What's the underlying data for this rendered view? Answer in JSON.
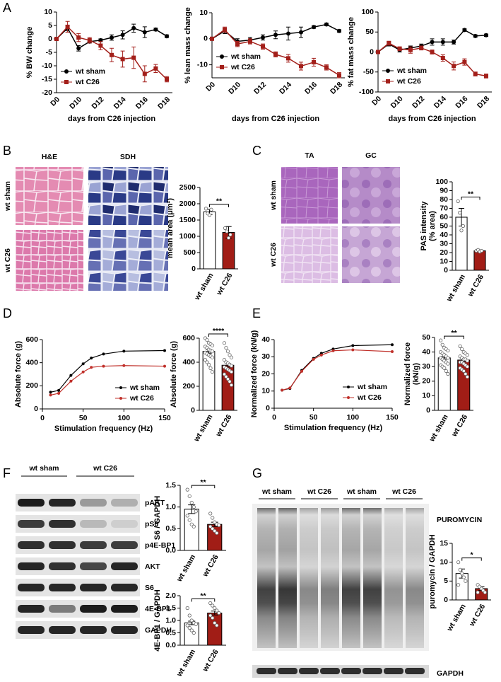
{
  "figure": {
    "panel_labels": [
      "A",
      "B",
      "C",
      "D",
      "E",
      "F",
      "G"
    ],
    "B_images": {
      "columns": [
        "H&E",
        "SDH"
      ],
      "rows": [
        "wt sham",
        "wt C26"
      ]
    },
    "C_images": {
      "columns": [
        "TA",
        "GC"
      ],
      "rows": [
        "wt sham",
        "wt C26"
      ]
    },
    "F_blot": {
      "groups": [
        "wt sham",
        "wt C26"
      ],
      "rows": [
        "pAKT",
        "pS6",
        "p4E-BP1",
        "AKT",
        "S6",
        "4E-BP1",
        "GAPDH"
      ]
    },
    "G_blot": {
      "groups": [
        "wt sham",
        "wt C26",
        "wt sham",
        "wt C26"
      ],
      "rows": [
        "PUROMYCIN",
        "GAPDH"
      ]
    }
  },
  "chart_data": [
    {
      "type": "line",
      "ylabel": "% BW change",
      "xlabel": "days from C26 injection",
      "categories": [
        "D0",
        null,
        "D10",
        null,
        "D12",
        null,
        "D14",
        null,
        "D16",
        null,
        "D18"
      ],
      "ylim": [
        -20,
        10
      ],
      "yticks": [
        -20,
        -15,
        -10,
        -5,
        0,
        5,
        10
      ],
      "legend": "lower left",
      "series": [
        {
          "name": "wt sham",
          "color": "#000000",
          "marker": "circle",
          "values": [
            0,
            4,
            -3.5,
            -1,
            -0.5,
            0.5,
            1.5,
            4,
            2.5,
            3.5,
            1
          ],
          "errors": [
            0,
            1,
            1,
            0.5,
            0.5,
            1,
            1.5,
            1.5,
            2,
            0.5,
            0.5
          ]
        },
        {
          "name": "wt C26",
          "color": "#a31f1a",
          "marker": "square",
          "values": [
            0,
            4.5,
            0.5,
            -0.5,
            -2.5,
            -6,
            -7.5,
            -7,
            -13,
            -11,
            -15
          ],
          "errors": [
            0,
            2,
            1.5,
            1,
            1.5,
            2.5,
            3,
            4,
            3,
            1.5,
            1
          ]
        }
      ]
    },
    {
      "type": "line",
      "ylabel": "% lean mass change",
      "xlabel": "days from C26 injection",
      "categories": [
        "D0",
        null,
        "D10",
        null,
        "D12",
        null,
        "D14",
        null,
        "D16",
        null,
        "D18"
      ],
      "ylim": [
        -15,
        10
      ],
      "yticks": [
        -10,
        0,
        10
      ],
      "legend": "lower left",
      "series": [
        {
          "name": "wt sham",
          "color": "#000000",
          "marker": "circle",
          "values": [
            0,
            3,
            -1,
            -0.5,
            0.5,
            1.5,
            2,
            2.5,
            4.5,
            5.5,
            3
          ],
          "errors": [
            0,
            1,
            1,
            1,
            1,
            1.5,
            2.5,
            2,
            0.5,
            0.5,
            0.5
          ]
        },
        {
          "name": "wt C26",
          "color": "#a31f1a",
          "marker": "square",
          "values": [
            0,
            3.5,
            -2,
            -1,
            -3,
            -6,
            -7.5,
            -10.5,
            -9,
            -11,
            -14
          ],
          "errors": [
            0,
            1,
            1,
            1,
            1,
            1,
            1.5,
            1.5,
            1.5,
            1,
            1
          ]
        }
      ]
    },
    {
      "type": "line",
      "ylabel": "% fat mass change",
      "xlabel": "days from C26 injection",
      "categories": [
        "D0",
        null,
        "D10",
        null,
        "D12",
        null,
        "D14",
        null,
        "D16",
        null,
        "D18"
      ],
      "ylim": [
        -100,
        100
      ],
      "yticks": [
        -100,
        -50,
        0,
        50,
        100
      ],
      "legend": "lower left",
      "series": [
        {
          "name": "wt sham",
          "color": "#000000",
          "marker": "circle",
          "values": [
            0,
            20,
            5,
            10,
            15,
            25,
            25,
            25,
            55,
            40,
            42
          ],
          "errors": [
            0,
            5,
            5,
            5,
            5,
            8,
            8,
            5,
            3,
            3,
            3
          ]
        },
        {
          "name": "wt C26",
          "color": "#a31f1a",
          "marker": "square",
          "values": [
            0,
            22,
            8,
            5,
            10,
            0,
            -15,
            -35,
            -25,
            -55,
            -60
          ],
          "errors": [
            0,
            5,
            5,
            8,
            5,
            5,
            8,
            10,
            8,
            5,
            5
          ]
        }
      ]
    },
    {
      "type": "bar",
      "ylabel": "mean area (μm²)",
      "categories": [
        "wt sham",
        "wt C26"
      ],
      "values": [
        1750,
        1120
      ],
      "errors": [
        80,
        180
      ],
      "colors": [
        "#ffffff",
        "#a11d16"
      ],
      "points": [
        [
          1850,
          1700,
          1650,
          1820
        ],
        [
          1250,
          1150,
          950,
          1050
        ]
      ],
      "ylim": [
        0,
        2500
      ],
      "yticks": [
        0,
        500,
        1000,
        1500,
        2000,
        2500
      ],
      "annotation": "**"
    },
    {
      "type": "bar",
      "ylabel": [
        "PAS intensity",
        "(% area)"
      ],
      "categories": [
        "wt sham",
        "wt C26"
      ],
      "values": [
        60,
        22
      ],
      "errors": [
        10,
        1
      ],
      "colors": [
        "#ffffff",
        "#a11d16"
      ],
      "points": [
        [
          78,
          65,
          45,
          50
        ],
        [
          22,
          23,
          21,
          22
        ]
      ],
      "ylim": [
        0,
        100
      ],
      "yticks": [
        0,
        10,
        20,
        30,
        40,
        50,
        60,
        70,
        80,
        90,
        100
      ],
      "annotation": "**"
    },
    {
      "type": "line",
      "ylabel": "Absolute force (g)",
      "xlabel": "Stimulation frequency (Hz)",
      "x": [
        10,
        20,
        35,
        50,
        60,
        75,
        100,
        150
      ],
      "xlim": [
        0,
        150
      ],
      "xticks": [
        0,
        50,
        100,
        150
      ],
      "ylim": [
        0,
        600
      ],
      "yticks": [
        0,
        200,
        400,
        600
      ],
      "legend": "lower right",
      "series": [
        {
          "name": "wt sham",
          "color": "#000000",
          "marker": "circle",
          "values": [
            145,
            160,
            290,
            390,
            440,
            475,
            500,
            505
          ]
        },
        {
          "name": "wt C26",
          "color": "#c0302a",
          "marker": "circle",
          "values": [
            120,
            135,
            240,
            320,
            360,
            370,
            375,
            370
          ]
        }
      ]
    },
    {
      "type": "bar",
      "ylabel": "Absolute force (g)",
      "categories": [
        "wt sham",
        "wt C26"
      ],
      "values": [
        490,
        375
      ],
      "errors": [
        15,
        15
      ],
      "colors": [
        "#ffffff",
        "#a11d16"
      ],
      "points": [
        [
          600,
          585,
          560,
          550,
          540,
          530,
          520,
          505,
          495,
          490,
          480,
          470,
          460,
          450,
          440,
          420,
          400,
          380,
          350,
          320
        ],
        [
          560,
          520,
          490,
          460,
          440,
          420,
          400,
          390,
          380,
          370,
          360,
          350,
          340,
          330,
          320,
          300,
          280,
          260,
          240,
          210
        ]
      ],
      "ylim": [
        0,
        600
      ],
      "yticks": [
        0,
        200,
        400,
        600
      ],
      "annotation": "****"
    },
    {
      "type": "line",
      "ylabel": "Normalized force (kN/g)",
      "xlabel": "Stimulation frequency (Hz)",
      "x": [
        10,
        20,
        35,
        50,
        60,
        75,
        100,
        150
      ],
      "xlim": [
        0,
        150
      ],
      "xticks": [
        0,
        50,
        100,
        150
      ],
      "ylim": [
        0,
        40
      ],
      "yticks": [
        0,
        10,
        20,
        30,
        40
      ],
      "legend": "lower right",
      "series": [
        {
          "name": "wt sham",
          "color": "#000000",
          "marker": "circle",
          "values": [
            10.5,
            11.5,
            22,
            29,
            32,
            34.5,
            36.5,
            37
          ]
        },
        {
          "name": "wt C26",
          "color": "#c0302a",
          "marker": "circle",
          "values": [
            10.5,
            11.8,
            21.5,
            28.5,
            31,
            33.5,
            34,
            33
          ]
        }
      ]
    },
    {
      "type": "bar",
      "ylabel": [
        "Normalized force",
        "(kN/g)"
      ],
      "categories": [
        "wt sham",
        "wt C26"
      ],
      "values": [
        36,
        34.5
      ],
      "errors": [
        1,
        1
      ],
      "colors": [
        "#ffffff",
        "#a11d16"
      ],
      "points": [
        [
          48,
          45,
          43,
          42,
          41,
          40,
          39,
          38,
          37,
          36,
          36,
          35,
          34,
          33,
          32,
          31,
          30,
          29,
          27,
          25
        ],
        [
          44,
          42,
          40,
          39,
          38,
          37,
          36,
          35,
          35,
          34,
          33,
          33,
          32,
          31,
          30,
          29,
          28,
          27,
          25,
          23
        ]
      ],
      "ylim": [
        0,
        50
      ],
      "yticks": [
        0,
        10,
        20,
        30,
        40,
        50
      ],
      "annotation": "**"
    },
    {
      "type": "bar",
      "ylabel": "S6 / GAPDH",
      "categories": [
        "wt sham",
        "wt C26"
      ],
      "values": [
        0.95,
        0.6
      ],
      "errors": [
        0.1,
        0.05
      ],
      "colors": [
        "#ffffff",
        "#a11d16"
      ],
      "points": [
        [
          1.4,
          1.25,
          1.1,
          1.0,
          0.9,
          0.8,
          0.7,
          0.6,
          0.55
        ],
        [
          0.85,
          0.75,
          0.65,
          0.6,
          0.58,
          0.55,
          0.5,
          0.45,
          0.4
        ]
      ],
      "ylim": [
        0,
        1.5
      ],
      "yticks": [
        {
          "value": 0,
          "label": "0.0"
        },
        0.5,
        {
          "value": 1,
          "label": "1.0"
        },
        1.5
      ],
      "annotation": "**"
    },
    {
      "type": "bar",
      "ylabel": "4E-BP1 / GAPDH",
      "categories": [
        "wt sham",
        "wt C26"
      ],
      "values": [
        0.9,
        1.3
      ],
      "errors": [
        0.07,
        0.08
      ],
      "colors": [
        "#ffffff",
        "#a11d16"
      ],
      "points": [
        [
          1.5,
          1.2,
          1.0,
          0.9,
          0.85,
          0.8,
          0.7,
          0.6,
          0.5
        ],
        [
          1.7,
          1.6,
          1.5,
          1.4,
          1.3,
          1.2,
          1.1,
          0.9,
          0.8
        ]
      ],
      "ylim": [
        0,
        2
      ],
      "yticks": [
        {
          "value": 0,
          "label": "0.0"
        },
        0.5,
        {
          "value": 1,
          "label": "1.0"
        },
        1.5,
        {
          "value": 2,
          "label": "2.0"
        }
      ],
      "annotation": "**"
    },
    {
      "type": "bar",
      "ylabel": "puromycin / GAPDH",
      "categories": [
        "wt sham",
        "wt C26"
      ],
      "values": [
        7,
        3
      ],
      "errors": [
        1.2,
        0.5
      ],
      "colors": [
        "#ffffff",
        "#a11d16"
      ],
      "points": [
        [
          10,
          8,
          7,
          6,
          5,
          4
        ],
        [
          4,
          3.5,
          3,
          2.5,
          2,
          2
        ]
      ],
      "ylim": [
        0,
        15
      ],
      "yticks": [
        0,
        5,
        10,
        15
      ],
      "annotation": "*"
    }
  ]
}
